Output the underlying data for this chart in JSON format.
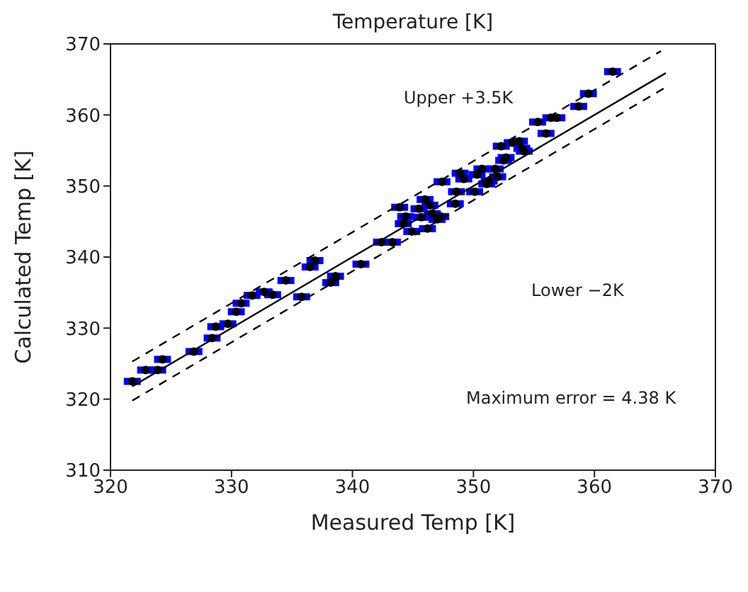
{
  "chart_data": {
    "type": "scatter",
    "title": "Temperature [K]",
    "xlabel": "Measured Temp [K]",
    "ylabel": "Calculated Temp [K]",
    "xlim": [
      320,
      370
    ],
    "ylim": [
      310,
      370
    ],
    "xticks": [
      320,
      330,
      340,
      350,
      360,
      370
    ],
    "yticks": [
      310,
      320,
      330,
      340,
      350,
      360,
      370
    ],
    "annotations": [
      "Upper +3.5K",
      "Lower −2K",
      "Maximum error = 4.38 K"
    ],
    "series": [
      {
        "color": "#000000",
        "marker": "circle",
        "x": [
          321.8,
          322.9,
          323.9,
          324.3,
          326.9,
          328.4,
          328.7,
          329.7,
          330.4,
          330.8,
          331.7,
          332.7,
          333.4,
          334.5,
          335.8,
          336.5,
          336.9,
          338.2,
          338.6,
          340.7,
          342.4,
          343.3,
          343.9,
          344.4,
          344.2,
          344.9,
          345.5,
          345.7,
          346.0,
          346.2,
          346.4,
          346.6,
          347.0,
          347.3,
          347.4,
          348.5,
          348.6,
          348.9,
          349.2,
          350.1,
          350.3,
          350.7,
          351.1,
          351.3,
          351.8,
          352.0,
          352.3,
          352.5,
          352.7,
          353.2,
          353.8,
          354.0,
          354.2,
          355.3,
          356.0,
          356.4,
          356.9,
          358.7,
          359.5,
          361.5
        ],
        "values": [
          322.5,
          324.1,
          324.1,
          325.6,
          326.7,
          328.6,
          330.2,
          330.6,
          332.3,
          333.5,
          334.6,
          335.1,
          334.7,
          336.7,
          334.4,
          338.6,
          339.5,
          336.4,
          337.3,
          339.0,
          342.1,
          342.1,
          347.0,
          345.7,
          344.7,
          343.6,
          346.8,
          345.6,
          348.1,
          344.0,
          347.3,
          346.1,
          345.3,
          345.7,
          350.6,
          347.5,
          349.2,
          351.8,
          351.0,
          349.2,
          351.6,
          352.4,
          350.3,
          350.7,
          352.4,
          351.3,
          355.6,
          353.6,
          354.0,
          356.1,
          356.3,
          355.3,
          354.9,
          359.0,
          357.4,
          359.6,
          359.6,
          361.2,
          363.0,
          366.1
        ],
        "xerrors": [
          0.7,
          0.7,
          0.7,
          0.7,
          0.7,
          0.7,
          0.7,
          0.7,
          0.7,
          0.7,
          0.7,
          0.7,
          0.7,
          0.7,
          0.7,
          0.7,
          0.7,
          0.7,
          0.7,
          0.7,
          0.7,
          0.7,
          0.7,
          0.7,
          0.7,
          0.7,
          0.7,
          0.7,
          0.7,
          0.7,
          0.7,
          0.7,
          0.7,
          0.7,
          0.7,
          0.7,
          0.7,
          0.7,
          0.7,
          0.7,
          0.7,
          0.7,
          0.7,
          0.7,
          0.7,
          0.7,
          0.7,
          0.7,
          0.7,
          0.7,
          0.7,
          0.7,
          0.7,
          0.7,
          0.7,
          0.7,
          0.7,
          0.7,
          0.7,
          0.7
        ]
      },
      {
        "type": "line",
        "marker": "none",
        "color": "#000000",
        "line_style": "solid",
        "x": [
          321.8,
          365.9
        ],
        "values": [
          321.8,
          365.9
        ]
      },
      {
        "type": "line",
        "marker": "none",
        "color": "#000000",
        "line_style": "dashed",
        "x": [
          321.8,
          365.5
        ],
        "values": [
          325.3,
          369.0
        ]
      },
      {
        "type": "line",
        "marker": "none",
        "color": "#000000",
        "line_style": "dashed",
        "x": [
          321.8,
          365.9
        ],
        "values": [
          319.8,
          363.9
        ]
      }
    ]
  }
}
